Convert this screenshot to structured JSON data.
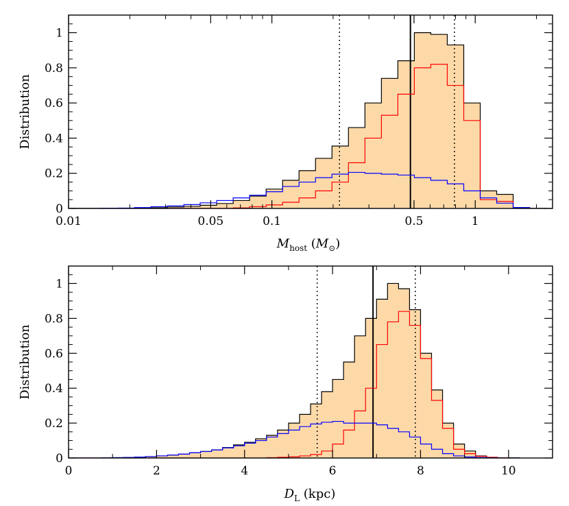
{
  "chart_data": [
    {
      "type": "histogram",
      "x_scale": "log",
      "xlabel_main": "M",
      "xlabel_sub": "host",
      "xlabel_unit_open": " (",
      "xlabel_unit_main": "M",
      "xlabel_unit_sub": "⊙",
      "xlabel_unit_close": ")",
      "ylabel": "Distribution",
      "xlim": [
        0.01,
        2.4
      ],
      "ylim": [
        0,
        1.1
      ],
      "x_ticks": [
        0.01,
        0.05,
        0.1,
        0.5,
        1
      ],
      "x_tick_labels": [
        "0.01",
        "0.05",
        "0.1",
        "0.5",
        "1"
      ],
      "y_ticks": [
        0,
        0.2,
        0.4,
        0.6,
        0.8,
        1
      ],
      "y_tick_labels": [
        "0",
        "0.2",
        "0.4",
        "0.6",
        "0.8",
        "1"
      ],
      "bin_edges": [
        0.01,
        0.012,
        0.0145,
        0.0175,
        0.0211,
        0.0254,
        0.0306,
        0.0369,
        0.0444,
        0.0535,
        0.0645,
        0.0777,
        0.0937,
        0.1129,
        0.136,
        0.1639,
        0.1975,
        0.238,
        0.2868,
        0.3456,
        0.4164,
        0.5018,
        0.6047,
        0.7287,
        0.8781,
        1.0581,
        1.275,
        1.5364,
        1.8514,
        2.231
      ],
      "series": [
        {
          "name": "total",
          "color": "#000000",
          "fill": "#fdd9a8",
          "values": [
            0,
            0,
            0,
            0,
            0.002,
            0.004,
            0.008,
            0.012,
            0.018,
            0.028,
            0.045,
            0.07,
            0.11,
            0.16,
            0.215,
            0.285,
            0.355,
            0.46,
            0.6,
            0.74,
            0.84,
            1.0,
            0.99,
            0.93,
            0.6,
            0.1,
            0.08,
            0.005,
            0.0
          ]
        },
        {
          "name": "red",
          "color": "#ff0000",
          "values": [
            0,
            0,
            0,
            0,
            0,
            0,
            0,
            0,
            0,
            0,
            0.003,
            0.01,
            0.02,
            0.035,
            0.06,
            0.1,
            0.15,
            0.26,
            0.4,
            0.53,
            0.65,
            0.8,
            0.82,
            0.7,
            0.5,
            0.05,
            0.04,
            0.003,
            0
          ]
        },
        {
          "name": "blue",
          "color": "#0000ff",
          "values": [
            0,
            0,
            0.001,
            0.002,
            0.005,
            0.01,
            0.014,
            0.022,
            0.032,
            0.045,
            0.06,
            0.075,
            0.095,
            0.125,
            0.15,
            0.175,
            0.195,
            0.205,
            0.2,
            0.195,
            0.19,
            0.175,
            0.16,
            0.14,
            0.1,
            0.06,
            0.03,
            0.005,
            0
          ]
        }
      ],
      "vlines": [
        {
          "x": 0.48,
          "style": "solid"
        },
        {
          "x": 0.215,
          "style": "dotted"
        },
        {
          "x": 0.79,
          "style": "dotted"
        }
      ]
    },
    {
      "type": "histogram",
      "x_scale": "linear",
      "xlabel_main": "D",
      "xlabel_sub": "L",
      "xlabel_unit_open": " (kpc)",
      "ylabel": "Distribution",
      "xlim": [
        0,
        11
      ],
      "ylim": [
        0,
        1.1
      ],
      "x_ticks": [
        0,
        2,
        4,
        6,
        8,
        10
      ],
      "x_tick_labels": [
        "0",
        "2",
        "4",
        "6",
        "8",
        "10"
      ],
      "y_ticks": [
        0,
        0.2,
        0.4,
        0.6,
        0.8,
        1
      ],
      "y_tick_labels": [
        "0",
        "0.2",
        "0.4",
        "0.6",
        "0.8",
        "1"
      ],
      "bin_start": 0,
      "bin_width": 0.25,
      "series": [
        {
          "name": "total",
          "color": "#000000",
          "fill": "#fdd9a8",
          "values": [
            0,
            0,
            0,
            0.001,
            0.002,
            0.003,
            0.005,
            0.008,
            0.012,
            0.017,
            0.022,
            0.03,
            0.038,
            0.047,
            0.06,
            0.075,
            0.09,
            0.11,
            0.13,
            0.16,
            0.2,
            0.25,
            0.31,
            0.38,
            0.45,
            0.55,
            0.7,
            0.8,
            0.91,
            1.0,
            0.97,
            0.85,
            0.6,
            0.39,
            0.2,
            0.08,
            0.04,
            0.012,
            0.004,
            0.001,
            0.001
          ]
        },
        {
          "name": "red",
          "color": "#ff0000",
          "values": [
            0,
            0,
            0,
            0,
            0,
            0,
            0,
            0,
            0,
            0,
            0,
            0,
            0,
            0,
            0,
            0,
            0,
            0,
            0.002,
            0.004,
            0.007,
            0.012,
            0.02,
            0.04,
            0.08,
            0.16,
            0.27,
            0.4,
            0.65,
            0.78,
            0.84,
            0.76,
            0.57,
            0.33,
            0.17,
            0.05,
            0.025,
            0.01,
            0.004,
            0.001,
            0
          ]
        },
        {
          "name": "blue",
          "color": "#0000ff",
          "values": [
            0,
            0,
            0,
            0.001,
            0.002,
            0.003,
            0.005,
            0.008,
            0.012,
            0.017,
            0.022,
            0.03,
            0.037,
            0.046,
            0.058,
            0.07,
            0.085,
            0.1,
            0.12,
            0.14,
            0.16,
            0.18,
            0.195,
            0.205,
            0.21,
            0.2,
            0.2,
            0.2,
            0.19,
            0.17,
            0.15,
            0.12,
            0.08,
            0.05,
            0.025,
            0.012,
            0.006,
            0.003,
            0.001,
            0,
            0
          ]
        }
      ],
      "vlines": [
        {
          "x": 6.92,
          "style": "solid"
        },
        {
          "x": 5.65,
          "style": "dotted"
        },
        {
          "x": 7.88,
          "style": "dotted"
        }
      ]
    }
  ]
}
